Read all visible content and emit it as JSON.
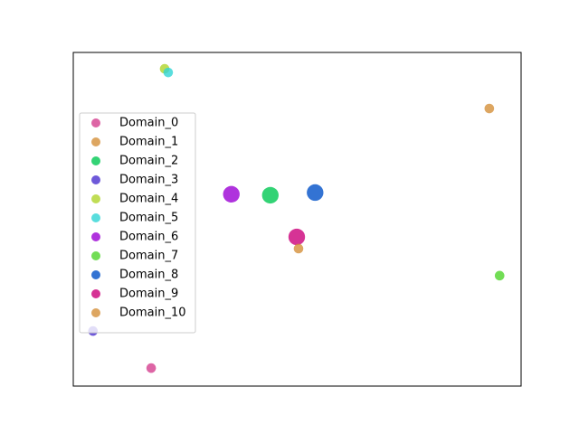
{
  "chart_data": {
    "type": "scatter",
    "xlim": [
      0,
      100
    ],
    "ylim": [
      0,
      100
    ],
    "legend": "center left",
    "series": [
      {
        "name": "Domain_0",
        "color": "#d43f8f",
        "x": [
          17.4
        ],
        "values": [
          5.4
        ],
        "sizes": [
          50
        ]
      },
      {
        "name": "Domain_1",
        "color": "#d4903a",
        "x": [
          92.9
        ],
        "values": [
          83.2
        ],
        "sizes": [
          50
        ]
      },
      {
        "name": "Domain_2",
        "color": "#00c853",
        "x": [
          44.0
        ],
        "values": [
          57.2
        ],
        "sizes": [
          150
        ]
      },
      {
        "name": "Domain_3",
        "color": "#4a2fd0",
        "x": [
          4.4
        ],
        "values": [
          16.5
        ],
        "sizes": [
          50
        ]
      },
      {
        "name": "Domain_4",
        "color": "#b0d42a",
        "x": [
          20.4
        ],
        "values": [
          95.1
        ],
        "sizes": [
          50
        ]
      },
      {
        "name": "Domain_5",
        "color": "#2fd4d4",
        "x": [
          21.2
        ],
        "values": [
          94.0
        ],
        "sizes": [
          50
        ]
      },
      {
        "name": "Domain_6",
        "color": "#9b00d4",
        "x": [
          35.3
        ],
        "values": [
          57.5
        ],
        "sizes": [
          150
        ]
      },
      {
        "name": "Domain_7",
        "color": "#4fd42a",
        "x": [
          95.2
        ],
        "values": [
          33.1
        ],
        "sizes": [
          50
        ]
      },
      {
        "name": "Domain_8",
        "color": "#0050c8",
        "x": [
          54.0
        ],
        "values": [
          58.0
        ],
        "sizes": [
          150
        ]
      },
      {
        "name": "Domain_9",
        "color": "#cc007a",
        "x": [
          49.9
        ],
        "values": [
          44.7
        ],
        "sizes": [
          150
        ]
      },
      {
        "name": "Domain_10",
        "color": "#d4903a",
        "x": [
          50.3
        ],
        "values": [
          41.2
        ],
        "sizes": [
          50
        ]
      }
    ]
  }
}
